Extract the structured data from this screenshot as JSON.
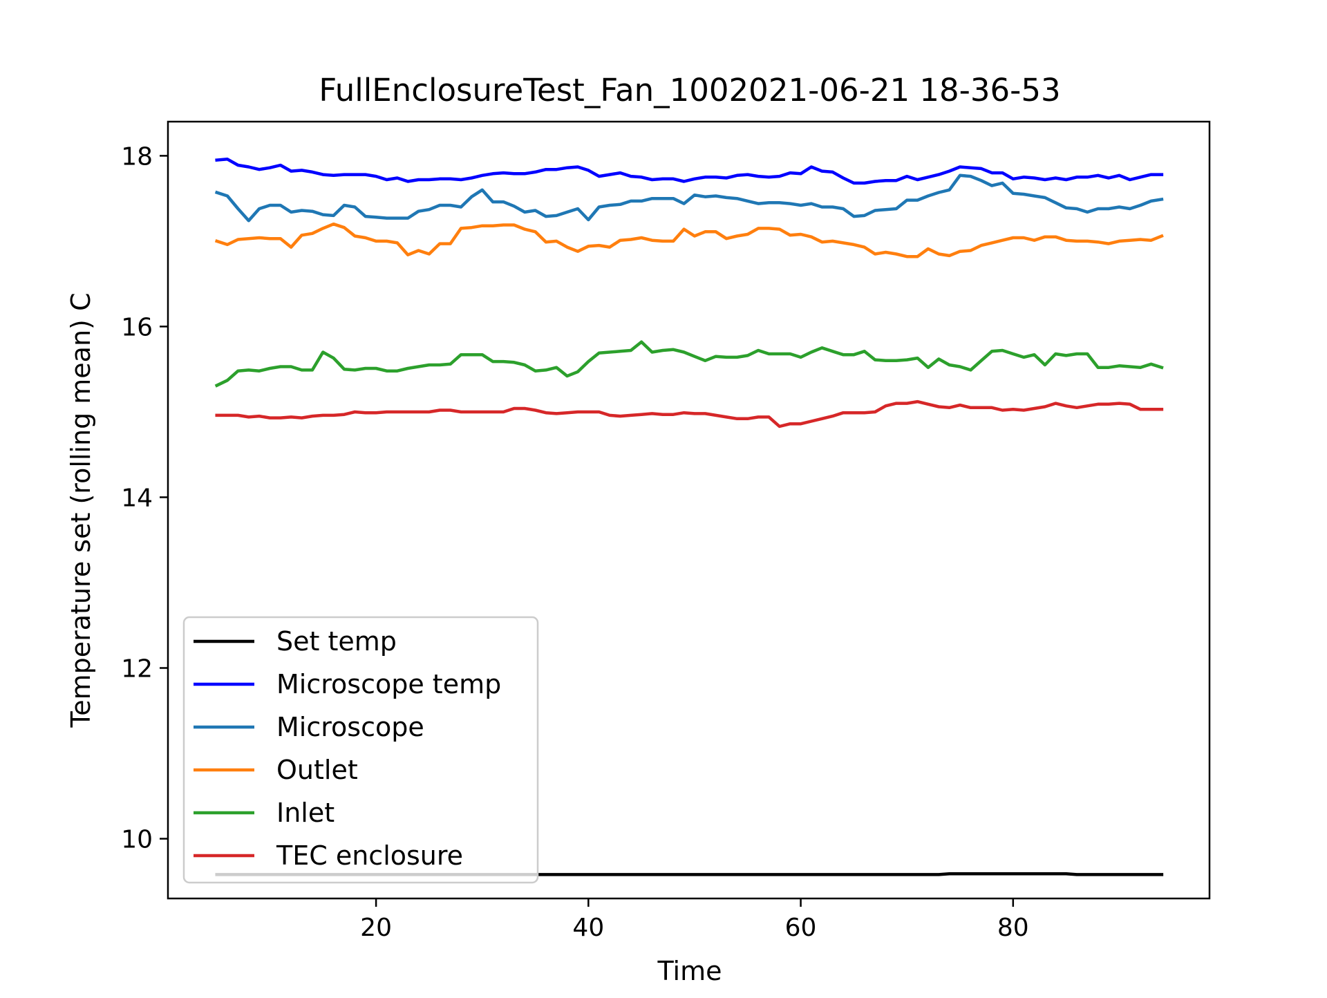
{
  "chart_data": {
    "type": "line",
    "title": "FullEnclosureTest_Fan_1002021-06-21 18-36-53",
    "xlabel": "Time",
    "ylabel": "Temperature set (rolling mean) C",
    "xlim": [
      0.4,
      98.5
    ],
    "ylim": [
      9.3,
      18.4
    ],
    "xticks": [
      20,
      40,
      60,
      80
    ],
    "yticks": [
      10,
      12,
      14,
      16,
      18
    ],
    "grid": false,
    "legend_position": "lower left",
    "x_start": 5,
    "x_step": 1,
    "series": [
      {
        "name": "Set temp",
        "color": "#000000",
        "values": [
          9.58,
          9.58,
          9.58,
          9.58,
          9.58,
          9.58,
          9.58,
          9.58,
          9.58,
          9.58,
          9.58,
          9.58,
          9.58,
          9.58,
          9.58,
          9.58,
          9.58,
          9.58,
          9.58,
          9.58,
          9.58,
          9.58,
          9.58,
          9.58,
          9.58,
          9.58,
          9.58,
          9.58,
          9.58,
          9.58,
          9.58,
          9.58,
          9.58,
          9.58,
          9.58,
          9.58,
          9.58,
          9.58,
          9.58,
          9.58,
          9.58,
          9.58,
          9.58,
          9.58,
          9.58,
          9.58,
          9.58,
          9.58,
          9.58,
          9.58,
          9.58,
          9.58,
          9.58,
          9.58,
          9.58,
          9.58,
          9.58,
          9.58,
          9.58,
          9.58,
          9.58,
          9.58,
          9.58,
          9.58,
          9.58,
          9.58,
          9.58,
          9.58,
          9.58,
          9.59,
          9.59,
          9.59,
          9.59,
          9.59,
          9.59,
          9.59,
          9.59,
          9.59,
          9.59,
          9.59,
          9.59,
          9.58,
          9.58,
          9.58,
          9.58,
          9.58,
          9.58,
          9.58,
          9.58,
          9.58
        ]
      },
      {
        "name": "Microscope temp",
        "color": "#0000ff",
        "values": [
          17.95,
          17.96,
          17.89,
          17.87,
          17.84,
          17.86,
          17.89,
          17.82,
          17.83,
          17.81,
          17.78,
          17.77,
          17.78,
          17.78,
          17.78,
          17.76,
          17.72,
          17.74,
          17.7,
          17.72,
          17.72,
          17.73,
          17.73,
          17.72,
          17.74,
          17.77,
          17.79,
          17.8,
          17.79,
          17.79,
          17.81,
          17.84,
          17.84,
          17.86,
          17.87,
          17.83,
          17.76,
          17.78,
          17.8,
          17.76,
          17.75,
          17.72,
          17.73,
          17.73,
          17.7,
          17.73,
          17.75,
          17.75,
          17.74,
          17.77,
          17.78,
          17.76,
          17.75,
          17.76,
          17.8,
          17.79,
          17.87,
          17.82,
          17.81,
          17.74,
          17.68,
          17.68,
          17.7,
          17.71,
          17.71,
          17.76,
          17.72,
          17.75,
          17.78,
          17.82,
          17.87,
          17.86,
          17.85,
          17.8,
          17.8,
          17.73,
          17.75,
          17.74,
          17.72,
          17.74,
          17.72,
          17.75,
          17.75,
          17.77,
          17.74,
          17.77,
          17.72,
          17.75,
          17.78,
          17.78
        ]
      },
      {
        "name": "Microscope",
        "color": "#1f77b4",
        "values": [
          17.57,
          17.53,
          17.38,
          17.24,
          17.38,
          17.42,
          17.42,
          17.34,
          17.36,
          17.35,
          17.31,
          17.3,
          17.42,
          17.4,
          17.29,
          17.28,
          17.27,
          17.27,
          17.27,
          17.35,
          17.37,
          17.42,
          17.42,
          17.4,
          17.52,
          17.6,
          17.46,
          17.46,
          17.41,
          17.34,
          17.36,
          17.29,
          17.3,
          17.34,
          17.38,
          17.25,
          17.4,
          17.42,
          17.43,
          17.47,
          17.47,
          17.5,
          17.5,
          17.5,
          17.44,
          17.54,
          17.52,
          17.53,
          17.51,
          17.5,
          17.47,
          17.44,
          17.45,
          17.45,
          17.44,
          17.42,
          17.44,
          17.4,
          17.4,
          17.38,
          17.29,
          17.3,
          17.36,
          17.37,
          17.38,
          17.48,
          17.48,
          17.53,
          17.57,
          17.6,
          17.77,
          17.76,
          17.71,
          17.65,
          17.68,
          17.56,
          17.55,
          17.53,
          17.51,
          17.45,
          17.39,
          17.38,
          17.34,
          17.38,
          17.38,
          17.4,
          17.38,
          17.42,
          17.47,
          17.49
        ]
      },
      {
        "name": "Outlet",
        "color": "#ff7f0e",
        "values": [
          17.0,
          16.96,
          17.02,
          17.03,
          17.04,
          17.03,
          17.03,
          16.93,
          17.07,
          17.09,
          17.15,
          17.2,
          17.16,
          17.06,
          17.04,
          17.0,
          17.0,
          16.98,
          16.84,
          16.89,
          16.85,
          16.97,
          16.97,
          17.15,
          17.16,
          17.18,
          17.18,
          17.19,
          17.19,
          17.14,
          17.11,
          16.99,
          17.0,
          16.93,
          16.88,
          16.94,
          16.95,
          16.93,
          17.01,
          17.02,
          17.04,
          17.01,
          17.0,
          17.0,
          17.14,
          17.06,
          17.11,
          17.11,
          17.03,
          17.06,
          17.08,
          17.15,
          17.15,
          17.14,
          17.07,
          17.08,
          17.05,
          16.99,
          17.0,
          16.98,
          16.96,
          16.93,
          16.85,
          16.87,
          16.85,
          16.82,
          16.82,
          16.91,
          16.85,
          16.83,
          16.88,
          16.89,
          16.95,
          16.98,
          17.01,
          17.04,
          17.04,
          17.01,
          17.05,
          17.05,
          17.01,
          17.0,
          17.0,
          16.99,
          16.97,
          17.0,
          17.01,
          17.02,
          17.01,
          17.06
        ]
      },
      {
        "name": "Inlet",
        "color": "#2ca02c",
        "values": [
          15.31,
          15.37,
          15.48,
          15.49,
          15.48,
          15.51,
          15.53,
          15.53,
          15.49,
          15.49,
          15.7,
          15.63,
          15.5,
          15.49,
          15.51,
          15.51,
          15.48,
          15.48,
          15.51,
          15.53,
          15.55,
          15.55,
          15.56,
          15.67,
          15.67,
          15.67,
          15.59,
          15.59,
          15.58,
          15.55,
          15.48,
          15.49,
          15.52,
          15.42,
          15.47,
          15.59,
          15.69,
          15.7,
          15.71,
          15.72,
          15.82,
          15.7,
          15.72,
          15.73,
          15.7,
          15.65,
          15.6,
          15.65,
          15.64,
          15.64,
          15.66,
          15.72,
          15.68,
          15.68,
          15.68,
          15.64,
          15.7,
          15.75,
          15.71,
          15.67,
          15.67,
          15.71,
          15.61,
          15.6,
          15.6,
          15.61,
          15.63,
          15.52,
          15.62,
          15.55,
          15.53,
          15.49,
          15.6,
          15.71,
          15.72,
          15.68,
          15.64,
          15.67,
          15.55,
          15.68,
          15.66,
          15.68,
          15.68,
          15.52,
          15.52,
          15.54,
          15.53,
          15.52,
          15.56,
          15.52
        ]
      },
      {
        "name": "TEC enclosure",
        "color": "#d62728",
        "values": [
          14.96,
          14.96,
          14.96,
          14.94,
          14.95,
          14.93,
          14.93,
          14.94,
          14.93,
          14.95,
          14.96,
          14.96,
          14.97,
          15.0,
          14.99,
          14.99,
          15.0,
          15.0,
          15.0,
          15.0,
          15.0,
          15.02,
          15.02,
          15.0,
          15.0,
          15.0,
          15.0,
          15.0,
          15.04,
          15.04,
          15.02,
          14.99,
          14.98,
          14.99,
          15.0,
          15.0,
          15.0,
          14.96,
          14.95,
          14.96,
          14.97,
          14.98,
          14.97,
          14.97,
          14.99,
          14.98,
          14.98,
          14.96,
          14.94,
          14.92,
          14.92,
          14.94,
          14.94,
          14.83,
          14.86,
          14.86,
          14.89,
          14.92,
          14.95,
          14.99,
          14.99,
          14.99,
          15.0,
          15.07,
          15.1,
          15.1,
          15.12,
          15.09,
          15.06,
          15.05,
          15.08,
          15.05,
          15.05,
          15.05,
          15.02,
          15.03,
          15.02,
          15.04,
          15.06,
          15.1,
          15.07,
          15.05,
          15.07,
          15.09,
          15.09,
          15.1,
          15.09,
          15.03,
          15.03,
          15.03
        ]
      }
    ]
  }
}
